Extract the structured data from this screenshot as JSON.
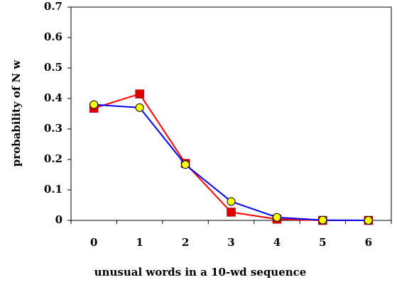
{
  "chart_data": {
    "type": "line",
    "x_label": "unusual words in a 10-wd sequence",
    "y_label": "probability of N w",
    "categories": [
      "0",
      "1",
      "2",
      "3",
      "4",
      "5",
      "6"
    ],
    "series": [
      {
        "color": "#ff0000",
        "marker": "square",
        "marker_color": "#dd0000",
        "values": [
          0.368,
          0.415,
          0.187,
          0.027,
          0.004,
          0,
          0
        ]
      },
      {
        "color": "#0000ff",
        "marker": "circle",
        "marker_color": "#ffff00",
        "values": [
          0.38,
          0.37,
          0.183,
          0.062,
          0.01,
          0.001,
          0
        ]
      }
    ],
    "ylim": [
      0,
      0.7
    ],
    "yticks": [
      0,
      0.1,
      0.2,
      0.3,
      0.4,
      0.5,
      0.6,
      0.7
    ],
    "grid": false
  }
}
